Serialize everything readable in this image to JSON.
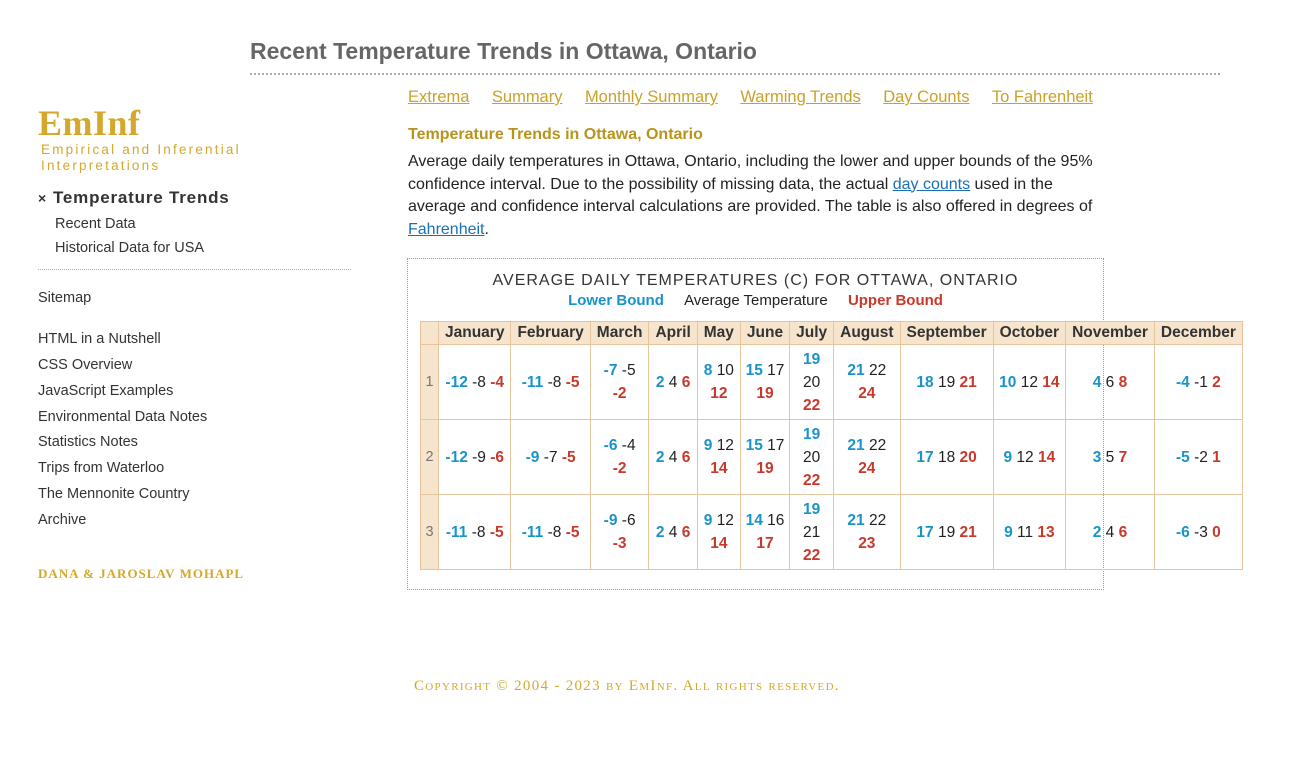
{
  "page_title": "Recent Temperature Trends in Ottawa, Ontario",
  "logo": {
    "name": "EmInf",
    "subtitle": "Empirical and Inferential Interpretations"
  },
  "sidebar": {
    "current_section": "Temperature Trends",
    "current_marker": "×",
    "sub_links": [
      "Recent Data",
      "Historical Data for USA"
    ],
    "sitemap": "Sitemap",
    "links": [
      "HTML in a Nutshell",
      "CSS Overview",
      "JavaScript Examples",
      "Environmental Data Notes",
      "Statistics Notes",
      "Trips from Waterloo",
      "The Mennonite Country",
      "Archive"
    ],
    "authors": "DANA & JAROSLAV MOHAPL"
  },
  "top_nav": [
    "Extrema",
    "Summary",
    "Monthly Summary",
    "Warming Trends",
    "Day Counts",
    "To Fahrenheit"
  ],
  "section_heading": "Temperature Trends in Ottawa, Ontario",
  "intro": {
    "part1": "Average daily temperatures in Ottawa, Ontario, including the lower and upper bounds of the 95% confidence interval. Due to the possibility of missing data, the actual ",
    "link1": "day counts",
    "part2": " used in the average and confidence interval calculations are provided. The table is also offered in degrees of ",
    "link2": "Fahrenheit",
    "part3": "."
  },
  "table": {
    "caption": "AVERAGE DAILY TEMPERATURES (C) FOR OTTAWA, ONTARIO",
    "legend": {
      "lower": "Lower Bound",
      "average": "Average Temperature",
      "upper": "Upper Bound"
    },
    "months": [
      "January",
      "February",
      "March",
      "April",
      "May",
      "June",
      "July",
      "August",
      "September",
      "October",
      "November",
      "December"
    ],
    "rows": [
      {
        "day": "1",
        "cells": [
          {
            "lo": "-12",
            "avg": "-8",
            "hi": "-4",
            "layout": "1"
          },
          {
            "lo": "-11",
            "avg": "-8",
            "hi": "-5",
            "layout": "1"
          },
          {
            "lo": "-7",
            "avg": "-5",
            "hi": "-2",
            "layout": "2"
          },
          {
            "lo": "2",
            "avg": "4",
            "hi": "6",
            "layout": "1"
          },
          {
            "lo": "8",
            "avg": "10",
            "hi": "12",
            "layout": "2"
          },
          {
            "lo": "15",
            "avg": "17",
            "hi": "19",
            "layout": "2"
          },
          {
            "lo": "19",
            "avg": "20",
            "hi": "22",
            "layout": "3"
          },
          {
            "lo": "21",
            "avg": "22",
            "hi": "24",
            "layout": "2"
          },
          {
            "lo": "18",
            "avg": "19",
            "hi": "21",
            "layout": "1"
          },
          {
            "lo": "10",
            "avg": "12",
            "hi": "14",
            "layout": "1"
          },
          {
            "lo": "4",
            "avg": "6",
            "hi": "8",
            "layout": "1"
          },
          {
            "lo": "-4",
            "avg": "-1",
            "hi": "2",
            "layout": "1"
          }
        ]
      },
      {
        "day": "2",
        "cells": [
          {
            "lo": "-12",
            "avg": "-9",
            "hi": "-6",
            "layout": "1"
          },
          {
            "lo": "-9",
            "avg": "-7",
            "hi": "-5",
            "layout": "1"
          },
          {
            "lo": "-6",
            "avg": "-4",
            "hi": "-2",
            "layout": "2"
          },
          {
            "lo": "2",
            "avg": "4",
            "hi": "6",
            "layout": "1"
          },
          {
            "lo": "9",
            "avg": "12",
            "hi": "14",
            "layout": "2"
          },
          {
            "lo": "15",
            "avg": "17",
            "hi": "19",
            "layout": "2"
          },
          {
            "lo": "19",
            "avg": "20",
            "hi": "22",
            "layout": "3"
          },
          {
            "lo": "21",
            "avg": "22",
            "hi": "24",
            "layout": "2"
          },
          {
            "lo": "17",
            "avg": "18",
            "hi": "20",
            "layout": "1"
          },
          {
            "lo": "9",
            "avg": "12",
            "hi": "14",
            "layout": "1"
          },
          {
            "lo": "3",
            "avg": "5",
            "hi": "7",
            "layout": "1"
          },
          {
            "lo": "-5",
            "avg": "-2",
            "hi": "1",
            "layout": "1"
          }
        ]
      },
      {
        "day": "3",
        "cells": [
          {
            "lo": "-11",
            "avg": "-8",
            "hi": "-5",
            "layout": "1"
          },
          {
            "lo": "-11",
            "avg": "-8",
            "hi": "-5",
            "layout": "1"
          },
          {
            "lo": "-9",
            "avg": "-6",
            "hi": "-3",
            "layout": "2"
          },
          {
            "lo": "2",
            "avg": "4",
            "hi": "6",
            "layout": "1"
          },
          {
            "lo": "9",
            "avg": "12",
            "hi": "14",
            "layout": "2"
          },
          {
            "lo": "14",
            "avg": "16",
            "hi": "17",
            "layout": "2"
          },
          {
            "lo": "19",
            "avg": "21",
            "hi": "22",
            "layout": "3"
          },
          {
            "lo": "21",
            "avg": "22",
            "hi": "23",
            "layout": "2"
          },
          {
            "lo": "17",
            "avg": "19",
            "hi": "21",
            "layout": "1"
          },
          {
            "lo": "9",
            "avg": "11",
            "hi": "13",
            "layout": "1"
          },
          {
            "lo": "2",
            "avg": "4",
            "hi": "6",
            "layout": "1"
          },
          {
            "lo": "-6",
            "avg": "-3",
            "hi": "0",
            "layout": "1"
          }
        ]
      }
    ]
  },
  "copyright": "Copyright © 2004 - 2023 by EmInf. All rights reserved.",
  "colors": {
    "gold": "#d4a82c",
    "lower": "#1a93c9",
    "upper": "#c8392b",
    "header_bg": "#f7e4cc"
  }
}
